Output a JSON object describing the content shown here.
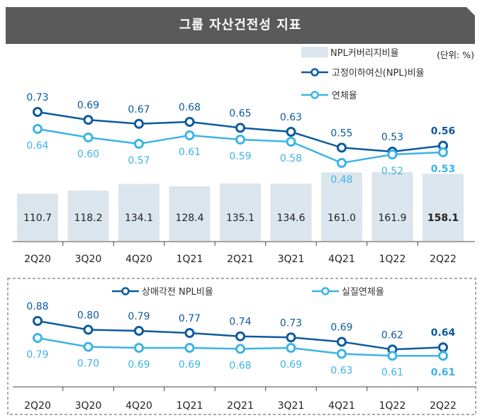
{
  "header": {
    "title": "그룹 자산건전성 지표",
    "unit": "(단위: %)"
  },
  "colors": {
    "banner": "#5a5a5a",
    "dark_line": "#0d5a9e",
    "light_line": "#3cb4e6",
    "bar": "#dbe5ee",
    "label_gray": "#777777"
  },
  "chart_data": [
    {
      "type": "bar+line",
      "categories": [
        "2Q20",
        "3Q20",
        "4Q20",
        "1Q21",
        "2Q21",
        "3Q21",
        "4Q21",
        "1Q22",
        "2Q22"
      ],
      "series": [
        {
          "name": "NPL커버리지비율",
          "kind": "bar",
          "values": [
            110.7,
            118.2,
            134.1,
            128.4,
            135.1,
            134.6,
            161.0,
            161.9,
            158.1
          ],
          "labels": [
            "110.7",
            "118.2",
            "134.1",
            "128.4",
            "135.1",
            "134.6",
            "161.0",
            "161.9",
            "158.1"
          ]
        },
        {
          "name": "고정이하여신(NPL)비율",
          "kind": "line",
          "values": [
            0.73,
            0.69,
            0.67,
            0.68,
            0.65,
            0.63,
            0.55,
            0.53,
            0.56
          ],
          "labels": [
            "0.73",
            "0.69",
            "0.67",
            "0.68",
            "0.65",
            "0.63",
            "0.55",
            "0.53",
            "0.56"
          ]
        },
        {
          "name": "연체율",
          "kind": "line",
          "values": [
            0.64,
            0.6,
            0.57,
            0.61,
            0.59,
            0.58,
            0.48,
            0.52,
            0.53
          ],
          "labels": [
            "0.64",
            "0.60",
            "0.57",
            "0.61",
            "0.59",
            "0.58",
            "0.48",
            "0.52",
            "0.53"
          ]
        }
      ]
    },
    {
      "type": "line",
      "categories": [
        "2Q20",
        "3Q20",
        "4Q20",
        "1Q21",
        "2Q21",
        "3Q21",
        "4Q21",
        "1Q22",
        "2Q22"
      ],
      "series": [
        {
          "name": "상매각전 NPL비율",
          "values": [
            0.88,
            0.8,
            0.79,
            0.77,
            0.74,
            0.73,
            0.69,
            0.62,
            0.64
          ],
          "labels": [
            "0.88",
            "0.80",
            "0.79",
            "0.77",
            "0.74",
            "0.73",
            "0.69",
            "0.62",
            "0.64"
          ]
        },
        {
          "name": "실질연체율",
          "values": [
            0.79,
            0.7,
            0.69,
            0.69,
            0.68,
            0.69,
            0.63,
            0.61,
            0.61
          ],
          "labels": [
            "0.79",
            "0.70",
            "0.69",
            "0.69",
            "0.68",
            "0.69",
            "0.63",
            "0.61",
            "0.61"
          ]
        }
      ]
    }
  ]
}
